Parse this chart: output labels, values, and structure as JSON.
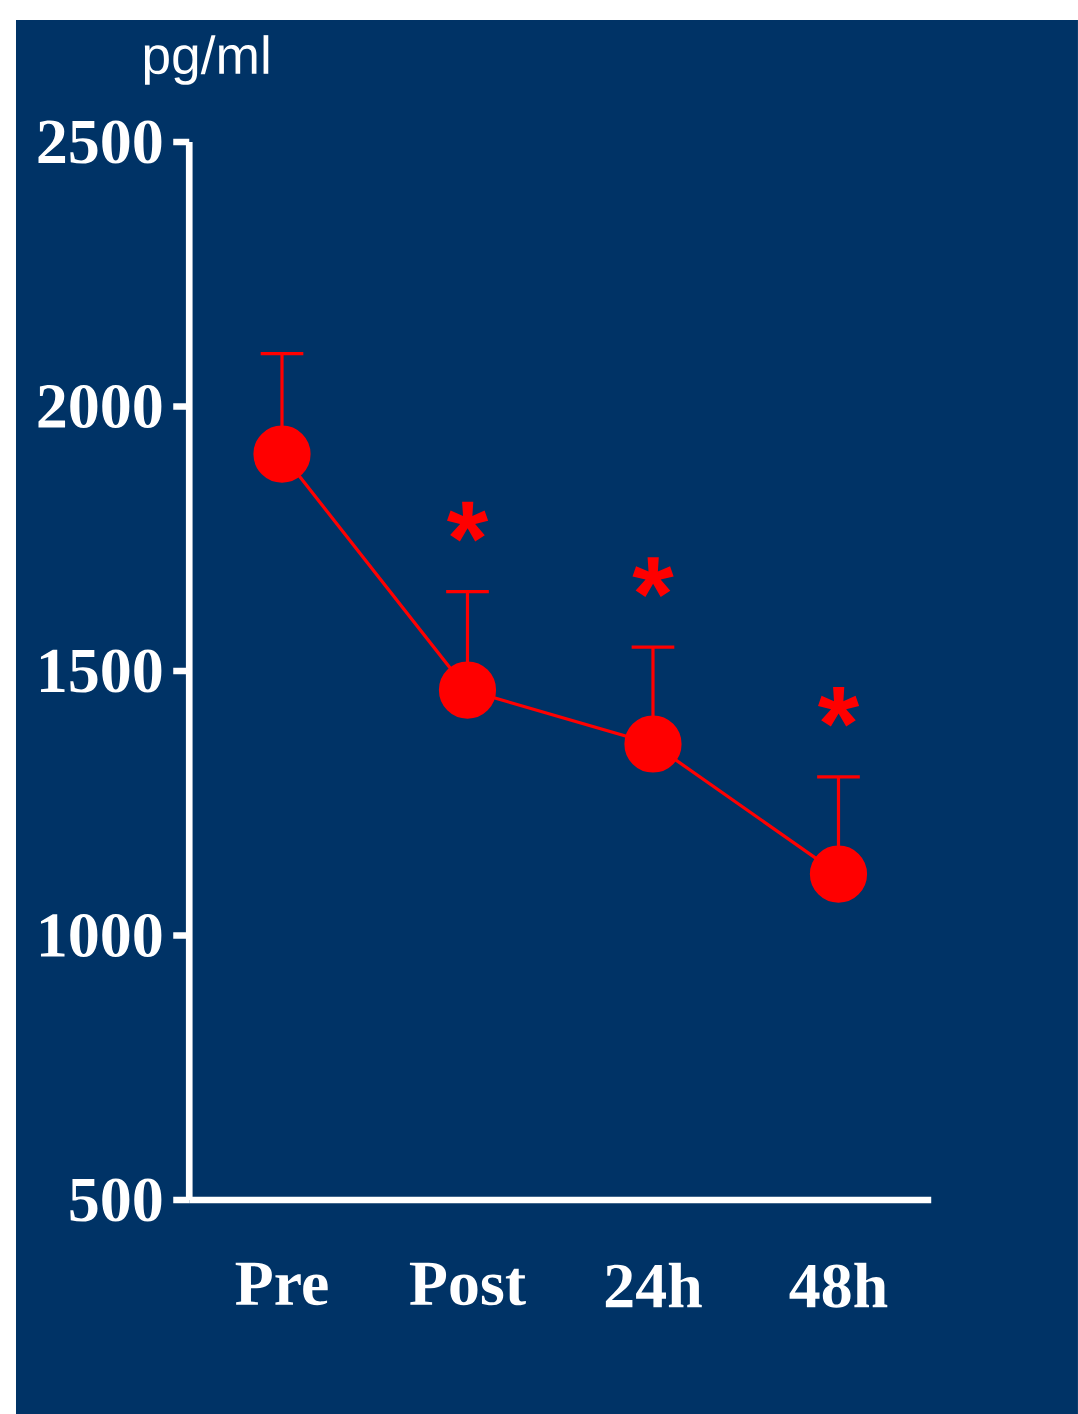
{
  "chart_data": {
    "type": "line",
    "ylabel": "pg/ml",
    "categories": [
      "Pre",
      "Post",
      "24h",
      "48h"
    ],
    "series": [
      {
        "color": "#ff0000",
        "values": [
          1910,
          1464,
          1362,
          1116
        ],
        "errors": [
          [
            1910,
            2100
          ],
          [
            1464,
            1650
          ],
          [
            1362,
            1545
          ],
          [
            1116,
            1300
          ]
        ]
      }
    ],
    "ylim": [
      500,
      2500
    ],
    "yticks": [
      500,
      1000,
      1500,
      2000,
      2500
    ],
    "marker": "circle",
    "line_style": "solid",
    "grid": false,
    "annotations": [
      "*",
      "*",
      "*"
    ]
  }
}
